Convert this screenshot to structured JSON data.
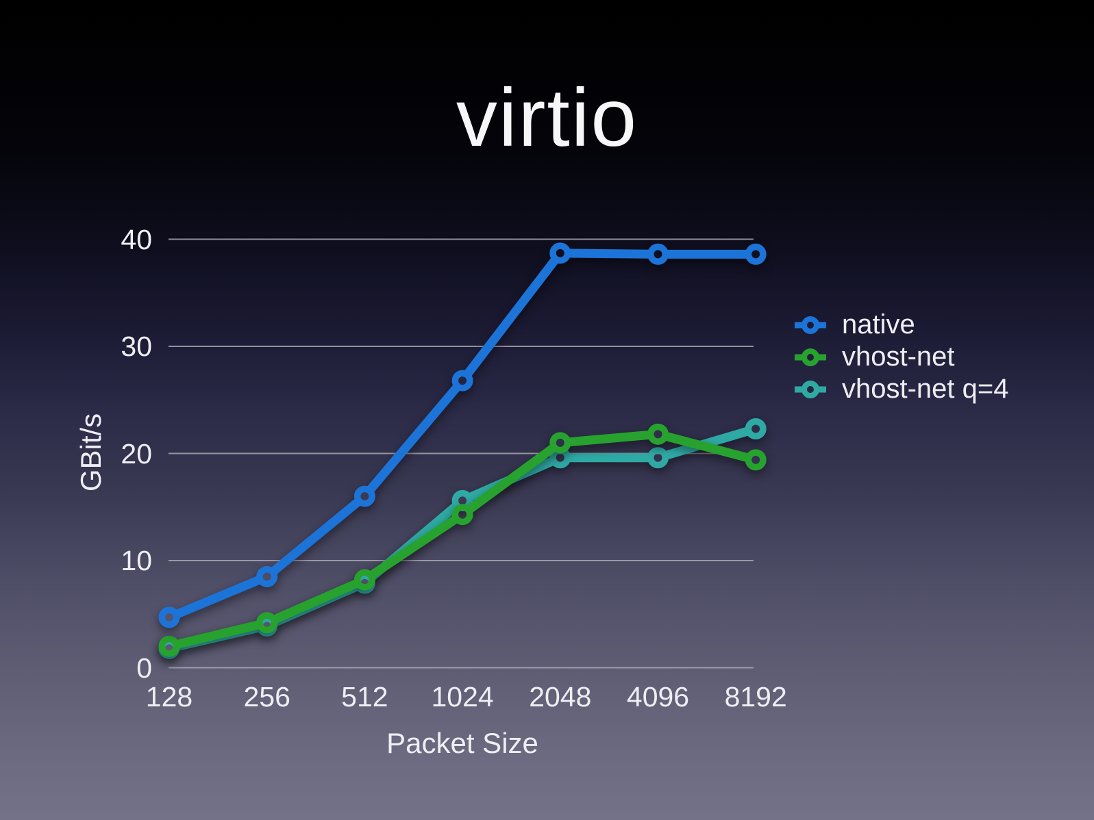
{
  "slide": {
    "title": "virtio"
  },
  "chart_data": {
    "type": "line",
    "title": "virtio",
    "xlabel": "Packet Size",
    "ylabel": "GBit/s",
    "categories": [
      "128",
      "256",
      "512",
      "1024",
      "2048",
      "4096",
      "8192"
    ],
    "series": [
      {
        "name": "native",
        "color": "#1c74d8",
        "values": [
          4.7,
          8.5,
          16.0,
          26.8,
          38.7,
          38.6,
          38.6
        ]
      },
      {
        "name": "vhost-net",
        "color": "#27a22e",
        "values": [
          2.0,
          4.2,
          8.2,
          14.3,
          21.0,
          21.8,
          19.4
        ]
      },
      {
        "name": "vhost-net q=4",
        "color": "#2fa9a4",
        "values": [
          1.8,
          3.9,
          7.9,
          15.6,
          19.6,
          19.6,
          22.3
        ]
      }
    ],
    "ylim": [
      0,
      40
    ],
    "yticks": [
      0,
      10,
      20,
      30,
      40
    ],
    "grid": "horizontal-only",
    "grid_color": "#a8a8b2",
    "legend_position": "right",
    "text_color": "#eeeef3",
    "background_top": "#000000",
    "background_bottom": "#747289"
  }
}
